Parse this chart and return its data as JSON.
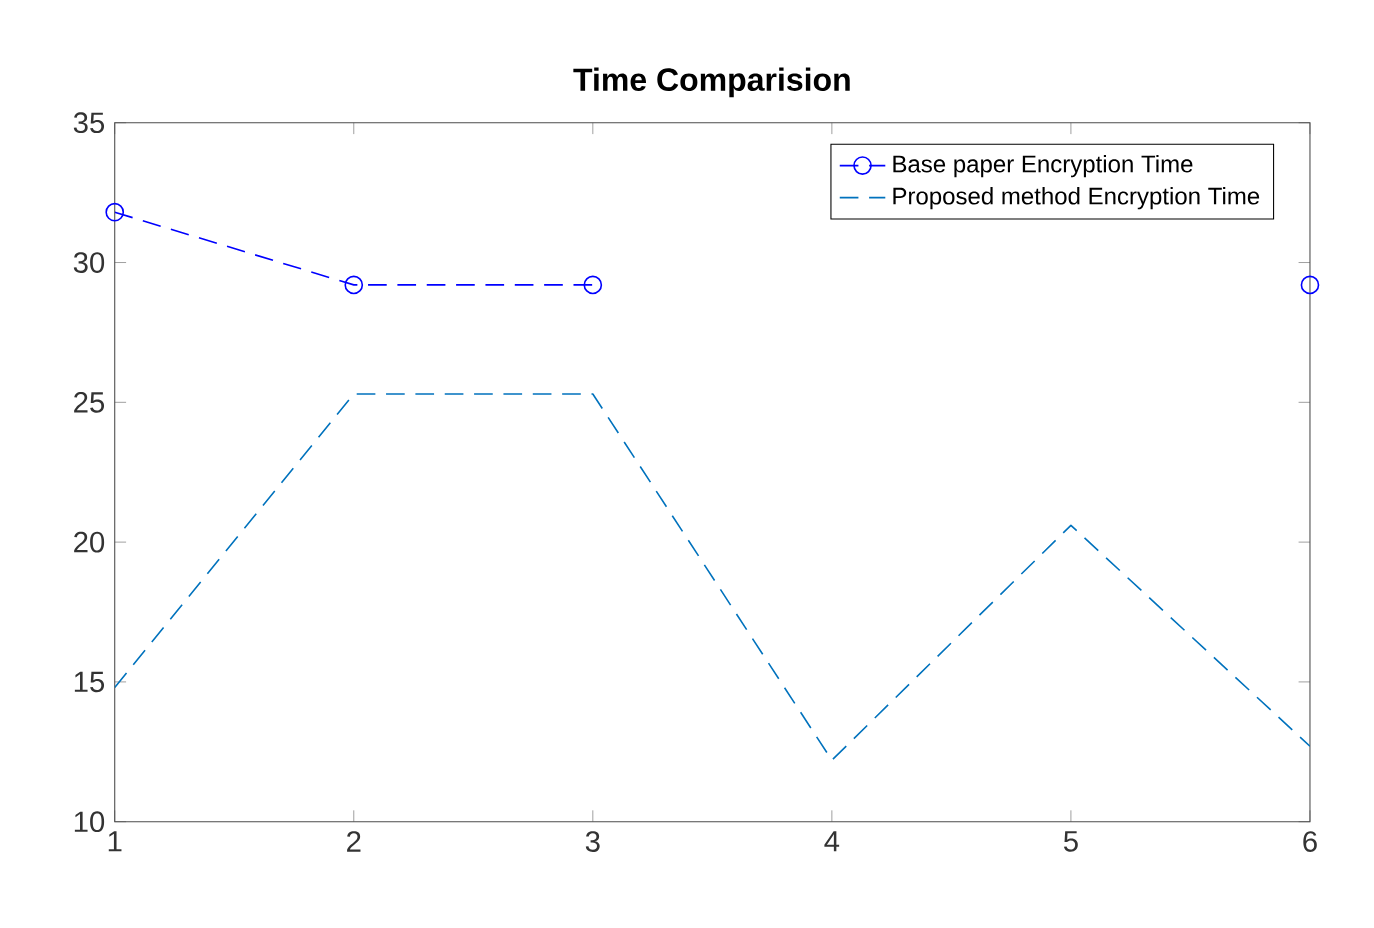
{
  "chart_data": {
    "type": "line",
    "title": "Time Comparision",
    "x": [
      1,
      2,
      3,
      4,
      5,
      6
    ],
    "series": [
      {
        "name": "Base paper Encryption Time",
        "color": "#0000ff",
        "marker": "circle",
        "values": [
          31.8,
          29.2,
          29.2,
          null,
          null,
          29.2
        ]
      },
      {
        "name": "Proposed method Encryption Time",
        "color": "#0072bd",
        "marker": "none",
        "values": [
          14.8,
          25.3,
          25.3,
          12.2,
          20.6,
          12.7
        ]
      }
    ],
    "line_style": "dashed",
    "legend": "top right",
    "grid": false,
    "xlim": [
      1,
      6
    ],
    "xticks": [
      1,
      2,
      3,
      4,
      5,
      6
    ],
    "ylim": [
      10,
      35
    ],
    "yticks": [
      10,
      15,
      20,
      25,
      30,
      35
    ]
  }
}
